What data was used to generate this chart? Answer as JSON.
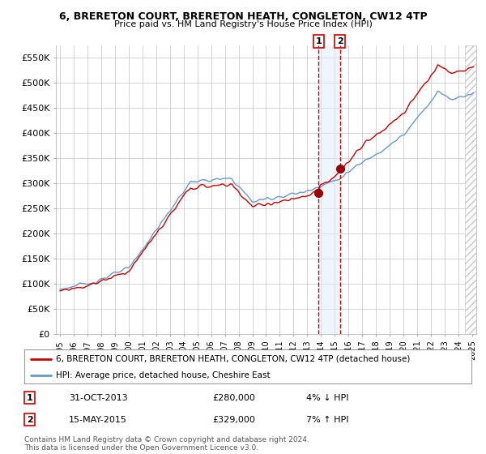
{
  "title": "6, BRERETON COURT, BRERETON HEATH, CONGLETON, CW12 4TP",
  "subtitle": "Price paid vs. HM Land Registry's House Price Index (HPI)",
  "legend_line1": "6, BRERETON COURT, BRERETON HEATH, CONGLETON, CW12 4TP (detached house)",
  "legend_line2": "HPI: Average price, detached house, Cheshire East",
  "sale1_label": "1",
  "sale1_date": "31-OCT-2013",
  "sale1_price": "£280,000",
  "sale1_hpi": "4% ↓ HPI",
  "sale2_label": "2",
  "sale2_date": "15-MAY-2015",
  "sale2_price": "£329,000",
  "sale2_hpi": "7% ↑ HPI",
  "footer": "Contains HM Land Registry data © Crown copyright and database right 2024.\nThis data is licensed under the Open Government Licence v3.0.",
  "line_color_red": "#cc0000",
  "line_color_blue": "#6699cc",
  "ylim": [
    0,
    575000
  ],
  "yticks": [
    0,
    50000,
    100000,
    150000,
    200000,
    250000,
    300000,
    350000,
    400000,
    450000,
    500000,
    550000
  ],
  "background_color": "#ffffff",
  "grid_color": "#cccccc",
  "sale1_x": 2013.83,
  "sale1_y": 280000,
  "sale2_x": 2015.37,
  "sale2_y": 329000,
  "xlim_left": 1994.7,
  "xlim_right": 2025.3,
  "hatch_start": 2024.5
}
